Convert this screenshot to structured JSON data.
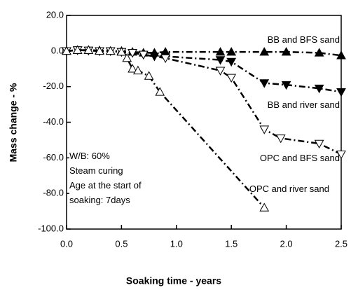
{
  "chart_data": {
    "type": "line",
    "x_label": "Soaking time - years",
    "y_label": "Mass change - %",
    "annotations": [
      "W/B: 60%",
      "Steam curing",
      "Age at the start of",
      "soaking: 7days"
    ],
    "xlim": [
      0,
      2.5
    ],
    "xticks": [
      {
        "value": 0,
        "label": "0.0"
      },
      {
        "value": 0.5,
        "label": "0.5"
      },
      {
        "value": 1,
        "label": "1.0"
      },
      {
        "value": 1.5,
        "label": "1.5"
      },
      {
        "value": 2,
        "label": "2.0"
      },
      {
        "value": 2.5,
        "label": "2.5"
      }
    ],
    "ylim": [
      -100,
      20
    ],
    "yticks": [
      {
        "value": 20,
        "label": "20.0"
      },
      {
        "value": 0,
        "label": "0.0"
      },
      {
        "value": -20,
        "label": "-20.0"
      },
      {
        "value": -40,
        "label": "-40.0"
      },
      {
        "value": -60,
        "label": "-60.0"
      },
      {
        "value": -80,
        "label": "-80.0"
      },
      {
        "value": -100,
        "label": "-100.0"
      }
    ],
    "series": [
      {
        "name": "BB and BFS sand",
        "color": "#000000",
        "marker": "triangle-up",
        "filled": true,
        "x": [
          0,
          0.1,
          0.2,
          0.3,
          0.4,
          0.5,
          0.6,
          0.7,
          0.8,
          0.9,
          1.4,
          1.5,
          1.8,
          2.0,
          2.3,
          2.5
        ],
        "values": [
          0,
          0.5,
          0.5,
          0.3,
          0,
          0,
          -0.5,
          -1,
          -1,
          -0.5,
          -0.5,
          -0.5,
          -0.5,
          -0.5,
          -1,
          -2.5
        ]
      },
      {
        "name": "BB and river sand",
        "color": "#000000",
        "marker": "triangle-down",
        "filled": true,
        "x": [
          0,
          0.1,
          0.2,
          0.3,
          0.4,
          0.5,
          0.6,
          0.7,
          0.8,
          0.9,
          1.4,
          1.5,
          1.8,
          2.0,
          2.3,
          2.5
        ],
        "values": [
          0,
          0.5,
          0.3,
          0,
          0,
          -0.5,
          -1,
          -2,
          -3,
          -3,
          -5,
          -6,
          -18,
          -19,
          -21,
          -23
        ]
      },
      {
        "name": "OPC and BFS sand",
        "color": "#000000",
        "marker": "triangle-down",
        "filled": false,
        "x": [
          0,
          0.1,
          0.2,
          0.3,
          0.4,
          0.5,
          0.6,
          0.7,
          0.9,
          1.4,
          1.5,
          1.8,
          1.95,
          2.3,
          2.5
        ],
        "values": [
          0,
          0.5,
          0.3,
          0,
          0,
          -0.5,
          -1,
          -2,
          -4,
          -11,
          -15,
          -44,
          -49,
          -52,
          -58
        ]
      },
      {
        "name": "OPC and river sand",
        "color": "#000000",
        "marker": "triangle-up",
        "filled": false,
        "x": [
          0,
          0.1,
          0.2,
          0.3,
          0.4,
          0.5,
          0.55,
          0.6,
          0.65,
          0.75,
          0.85,
          1.8
        ],
        "values": [
          0,
          0.5,
          0.5,
          0,
          0,
          -0.5,
          -4,
          -10,
          -11,
          -14,
          -23,
          -88
        ]
      }
    ]
  }
}
